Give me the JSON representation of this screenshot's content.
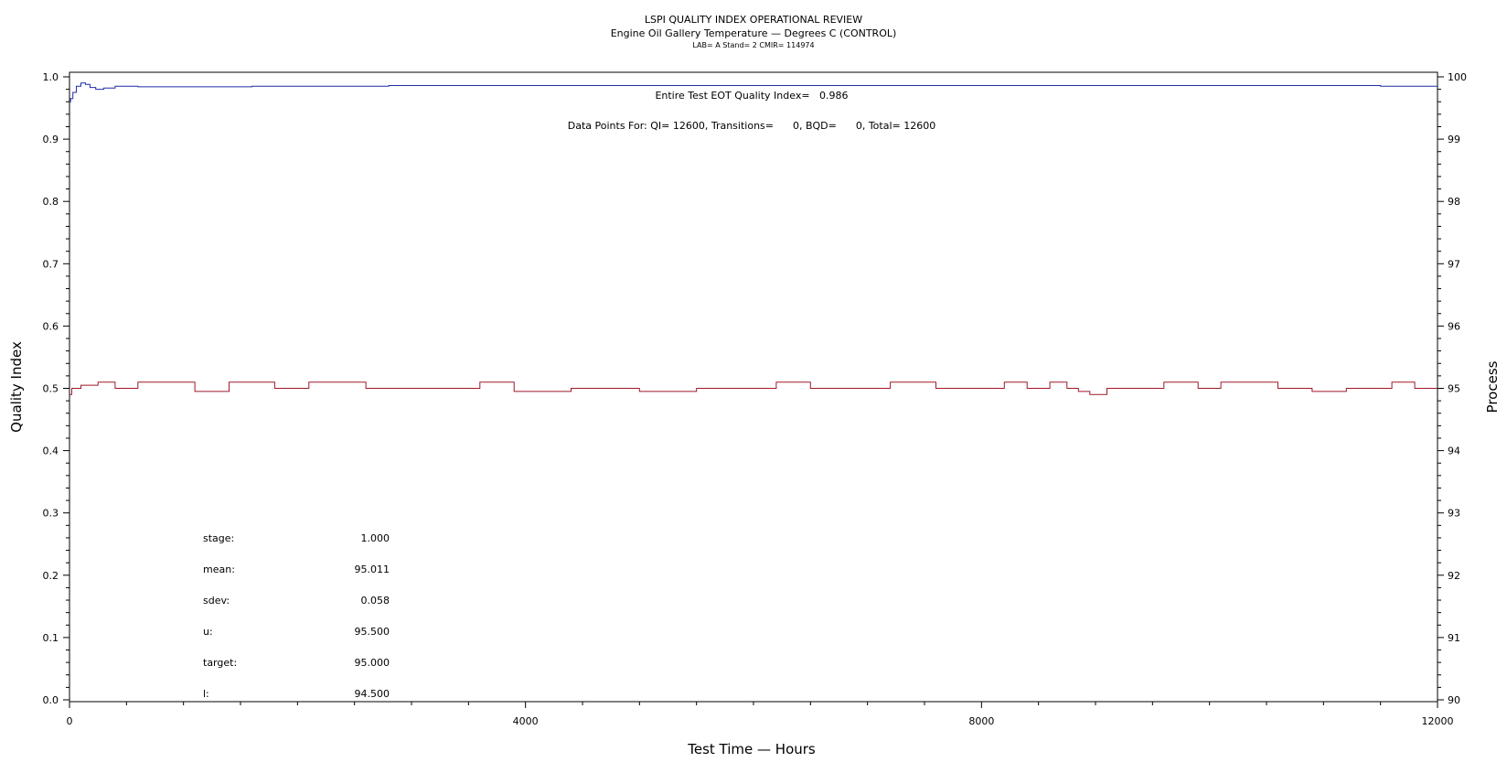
{
  "title_lines": [
    "LSPI QUALITY INDEX OPERATIONAL REVIEW",
    "Engine Oil Gallery Temperature — Degrees C (CONTROL)",
    "LAB= A Stand= 2 CMIR= 114974"
  ],
  "annotations": {
    "qi_text": "Entire Test EOT Quality Index=   0.986",
    "points_text": "Data Points For: QI= 12600, Transitions=      0, BQD=      0, Total= 12600"
  },
  "stats": [
    {
      "label": "stage:",
      "value": "1.000"
    },
    {
      "label": "mean:",
      "value": "95.011"
    },
    {
      "label": "sdev:",
      "value": "0.058"
    },
    {
      "label": "u:",
      "value": "95.500"
    },
    {
      "label": "target:",
      "value": "95.000"
    },
    {
      "label": "l:",
      "value": "94.500"
    }
  ],
  "chart_data": {
    "type": "line",
    "xlabel": "Test Time — Hours",
    "ylabel": "Quality Index",
    "y2label": "Process",
    "xlim": [
      0,
      12000
    ],
    "ylim": [
      0.0,
      1.0
    ],
    "y2lim": [
      90,
      100
    ],
    "x_ticks": [
      0,
      4000,
      8000,
      12000
    ],
    "y_ticks": [
      0.0,
      0.1,
      0.2,
      0.3,
      0.4,
      0.5,
      0.6,
      0.7,
      0.8,
      0.9,
      1.0
    ],
    "y2_ticks": [
      90,
      91,
      92,
      93,
      94,
      95,
      96,
      97,
      98,
      99,
      100
    ],
    "series": [
      {
        "axis": "left",
        "color": "#1f2fa8",
        "x": [
          0,
          10,
          30,
          60,
          100,
          140,
          180,
          230,
          300,
          400,
          600,
          800,
          1000,
          1300,
          1600,
          2000,
          2400,
          2800,
          3200,
          3600,
          4000,
          5000,
          6000,
          7000,
          8000,
          8600,
          9000,
          10000,
          11000,
          11500,
          12000
        ],
        "values": [
          0.96,
          0.965,
          0.975,
          0.985,
          0.99,
          0.988,
          0.983,
          0.98,
          0.982,
          0.985,
          0.984,
          0.984,
          0.984,
          0.984,
          0.985,
          0.985,
          0.985,
          0.986,
          0.986,
          0.986,
          0.986,
          0.986,
          0.986,
          0.986,
          0.986,
          0.986,
          0.986,
          0.986,
          0.986,
          0.985,
          0.985
        ]
      },
      {
        "axis": "right",
        "color": "#a0182a",
        "x": [
          0,
          10,
          20,
          100,
          250,
          400,
          600,
          900,
          1100,
          1400,
          1800,
          2100,
          2600,
          2900,
          3300,
          3600,
          3900,
          4400,
          4800,
          5000,
          5500,
          5900,
          6200,
          6500,
          6900,
          7200,
          7600,
          7900,
          8200,
          8400,
          8600,
          8750,
          8850,
          8950,
          9100,
          9400,
          9600,
          9900,
          10100,
          10300,
          10600,
          10900,
          11200,
          11600,
          11800,
          12000
        ],
        "values": [
          94.9,
          94.9,
          95.0,
          95.05,
          95.1,
          95.0,
          95.1,
          95.1,
          94.95,
          95.1,
          95.0,
          95.1,
          95.0,
          95.0,
          95.0,
          95.1,
          94.95,
          95.0,
          95.0,
          94.95,
          95.0,
          95.0,
          95.1,
          95.0,
          95.0,
          95.1,
          95.0,
          95.0,
          95.1,
          95.0,
          95.1,
          95.0,
          94.95,
          94.9,
          95.0,
          95.0,
          95.1,
          95.0,
          95.1,
          95.1,
          95.0,
          94.95,
          95.0,
          95.1,
          95.0,
          95.0
        ]
      }
    ]
  }
}
